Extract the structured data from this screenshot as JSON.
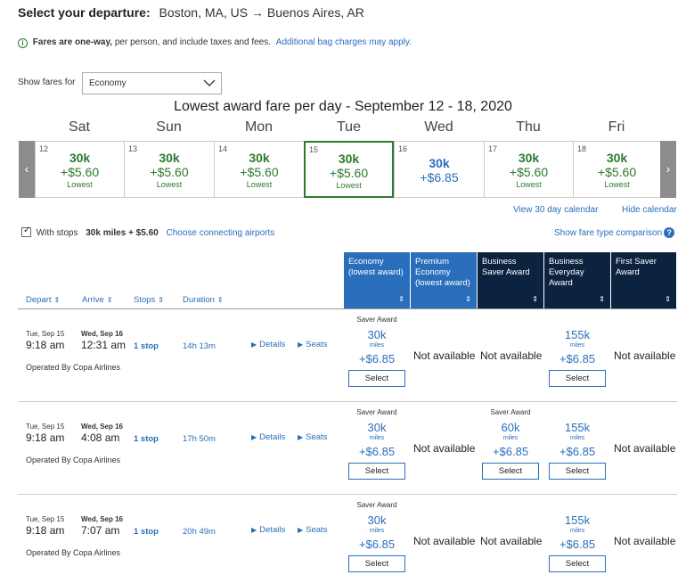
{
  "header": {
    "title_label": "Select your departure:",
    "route": "Boston, MA, US → Buenos Aires, AR"
  },
  "notice": {
    "icon": "info-icon",
    "bold_text": "Fares are one-way,",
    "text": "per person, and include taxes and fees.",
    "link": "Additional bag charges may apply."
  },
  "fare_filter": {
    "label": "Show fares for",
    "selected": "Economy"
  },
  "calendar": {
    "title": "Lowest award fare per day - September 12 - 18, 2020",
    "days": [
      {
        "name": "Sat",
        "num": "12",
        "miles": "30k",
        "fee": "+$5.60",
        "note": "Lowest",
        "color": "green",
        "selected": false
      },
      {
        "name": "Sun",
        "num": "13",
        "miles": "30k",
        "fee": "+$5.60",
        "note": "Lowest",
        "color": "green",
        "selected": false
      },
      {
        "name": "Mon",
        "num": "14",
        "miles": "30k",
        "fee": "+$5.60",
        "note": "Lowest",
        "color": "green",
        "selected": false
      },
      {
        "name": "Tue",
        "num": "15",
        "miles": "30k",
        "fee": "+$5.60",
        "note": "Lowest",
        "color": "green",
        "selected": true
      },
      {
        "name": "Wed",
        "num": "16",
        "miles": "30k",
        "fee": "+$6.85",
        "note": "",
        "color": "blue",
        "selected": false
      },
      {
        "name": "Thu",
        "num": "17",
        "miles": "30k",
        "fee": "+$5.60",
        "note": "Lowest",
        "color": "green",
        "selected": false
      },
      {
        "name": "Fri",
        "num": "18",
        "miles": "30k",
        "fee": "+$5.60",
        "note": "Lowest",
        "color": "green",
        "selected": false
      }
    ],
    "prev_arrow": "‹",
    "next_arrow": "›",
    "view_30_link": "View 30 day calendar",
    "hide_link": "Hide calendar"
  },
  "stops_filter": {
    "label": "With stops",
    "checked": true,
    "value": "30k miles + $5.60",
    "connecting_link": "Choose connecting airports",
    "compare_link": "Show fare type comparison"
  },
  "columns": {
    "sort_headers": [
      "Depart",
      "Arrive",
      "Stops",
      "Duration"
    ],
    "sort_glyph": "⇕",
    "fare_types": [
      {
        "label": "Economy (lowest award)",
        "color": "#2a6ebb"
      },
      {
        "label": "Premium Economy (lowest award)",
        "color": "#2a6ebb"
      },
      {
        "label": "Business Saver Award",
        "color": "#0c2340"
      },
      {
        "label": "Business Everyday Award",
        "color": "#0c2340"
      },
      {
        "label": "First Saver Award",
        "color": "#0c2340"
      }
    ]
  },
  "flights": [
    {
      "depart_date": "Tue, Sep 15",
      "depart_time": "9:18 am",
      "arrive_date": "Wed, Sep 16",
      "arrive_time": "12:31 am",
      "stops": "1 stop",
      "duration": "14h 13m",
      "details": "Details",
      "seats": "Seats",
      "operator": "Operated By Copa Airlines",
      "fares": [
        {
          "type": "Saver Award",
          "miles": "30k",
          "unit": "miles",
          "fee": "+$6.85",
          "button": "Select",
          "available": true
        },
        {
          "available": false,
          "text": "Not available"
        },
        {
          "available": false,
          "text": "Not available"
        },
        {
          "type": "",
          "miles": "155k",
          "unit": "miles",
          "fee": "+$6.85",
          "button": "Select",
          "available": true
        },
        {
          "available": false,
          "text": "Not available"
        }
      ]
    },
    {
      "depart_date": "Tue, Sep 15",
      "depart_time": "9:18 am",
      "arrive_date": "Wed, Sep 16",
      "arrive_time": "4:08 am",
      "stops": "1 stop",
      "duration": "17h 50m",
      "details": "Details",
      "seats": "Seats",
      "operator": "Operated By Copa Airlines",
      "fares": [
        {
          "type": "Saver Award",
          "miles": "30k",
          "unit": "miles",
          "fee": "+$6.85",
          "button": "Select",
          "available": true
        },
        {
          "available": false,
          "text": "Not available"
        },
        {
          "type": "Saver Award",
          "miles": "60k",
          "unit": "miles",
          "fee": "+$6.85",
          "button": "Select",
          "available": true
        },
        {
          "type": "",
          "miles": "155k",
          "unit": "miles",
          "fee": "+$6.85",
          "button": "Select",
          "available": true
        },
        {
          "available": false,
          "text": "Not available"
        }
      ]
    },
    {
      "depart_date": "Tue, Sep 15",
      "depart_time": "9:18 am",
      "arrive_date": "Wed, Sep 16",
      "arrive_time": "7:07 am",
      "stops": "1 stop",
      "duration": "20h 49m",
      "details": "Details",
      "seats": "Seats",
      "operator": "Operated By Copa Airlines",
      "fares": [
        {
          "type": "Saver Award",
          "miles": "30k",
          "unit": "miles",
          "fee": "+$6.85",
          "button": "Select",
          "available": true
        },
        {
          "available": false,
          "text": "Not available"
        },
        {
          "available": false,
          "text": "Not available"
        },
        {
          "type": "",
          "miles": "155k",
          "unit": "miles",
          "fee": "+$6.85",
          "button": "Select",
          "available": true
        },
        {
          "available": false,
          "text": "Not available"
        }
      ]
    }
  ]
}
